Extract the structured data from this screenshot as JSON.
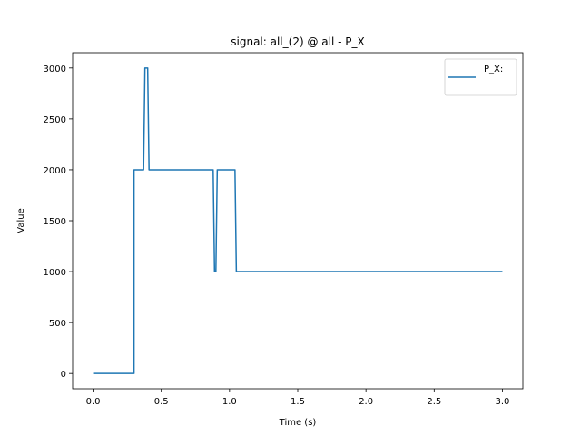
{
  "chart_data": {
    "type": "line",
    "title": "signal: all_(2) @ all - P_X",
    "xlabel": "Time (s)",
    "ylabel": "Value",
    "xlim": [
      -0.15,
      3.15
    ],
    "ylim": [
      -150,
      3150
    ],
    "xticks": [
      0.0,
      0.5,
      1.0,
      1.5,
      2.0,
      2.5,
      3.0
    ],
    "xtick_labels": [
      "0.0",
      "0.5",
      "1.0",
      "1.5",
      "2.0",
      "2.5",
      "3.0"
    ],
    "yticks": [
      0,
      500,
      1000,
      1500,
      2000,
      2500,
      3000
    ],
    "ytick_labels": [
      "0",
      "500",
      "1000",
      "1500",
      "2000",
      "2500",
      "3000"
    ],
    "grid": false,
    "legend_position": "top-right",
    "series": [
      {
        "name": "P_X:",
        "color": "#1f77b4",
        "x": [
          0.0,
          0.3,
          0.3,
          0.37,
          0.38,
          0.4,
          0.41,
          0.88,
          0.89,
          0.9,
          0.91,
          1.04,
          1.05,
          3.0
        ],
        "y": [
          0,
          0,
          2000,
          2000,
          3000,
          3000,
          2000,
          2000,
          1000,
          1000,
          2000,
          2000,
          1000,
          1000
        ]
      }
    ]
  }
}
